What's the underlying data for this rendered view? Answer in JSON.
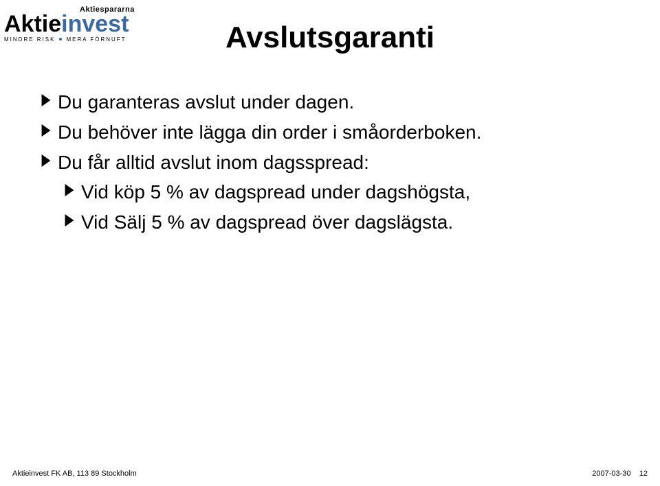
{
  "logo": {
    "super_text": "Aktiespararna",
    "super_color": "#000000",
    "super_fontsize": 11,
    "main_black": "Aktie",
    "main_blue": "invest",
    "main_fontsize": 34,
    "black": "#000000",
    "blue": "#3a6aa0",
    "tagline_left": "MINDRE RISK",
    "tagline_right": "MERA FÖRNUFT",
    "tagline_fontsize": 8,
    "tagline_color": "#000000",
    "dot_color": "#3a6aa0"
  },
  "title": {
    "text": "Avslutsgaranti",
    "color": "#000000",
    "fontsize": 44
  },
  "bullets": {
    "marker_color": "#000000",
    "text_color": "#000000",
    "fontsize_main": 28,
    "fontsize_sub": 28,
    "items": [
      {
        "text": "Du garanteras avslut under dagen.",
        "level": 0
      },
      {
        "text": "Du behöver inte lägga din order i småorderboken.",
        "level": 0
      },
      {
        "text": "Du får alltid avslut inom dagsspread:",
        "level": 0
      },
      {
        "text": "Vid köp 5 % av dagspread under dagshögsta,",
        "level": 1
      },
      {
        "text": "Vid Sälj 5 % av dagspread över dagslägsta.",
        "level": 1
      }
    ]
  },
  "footer": {
    "left": "Aktieinvest FK AB, 113 89 Stockholm",
    "date": "2007-03-30",
    "page": "12",
    "color": "#000000",
    "fontsize": 11
  },
  "background_color": "#ffffff"
}
